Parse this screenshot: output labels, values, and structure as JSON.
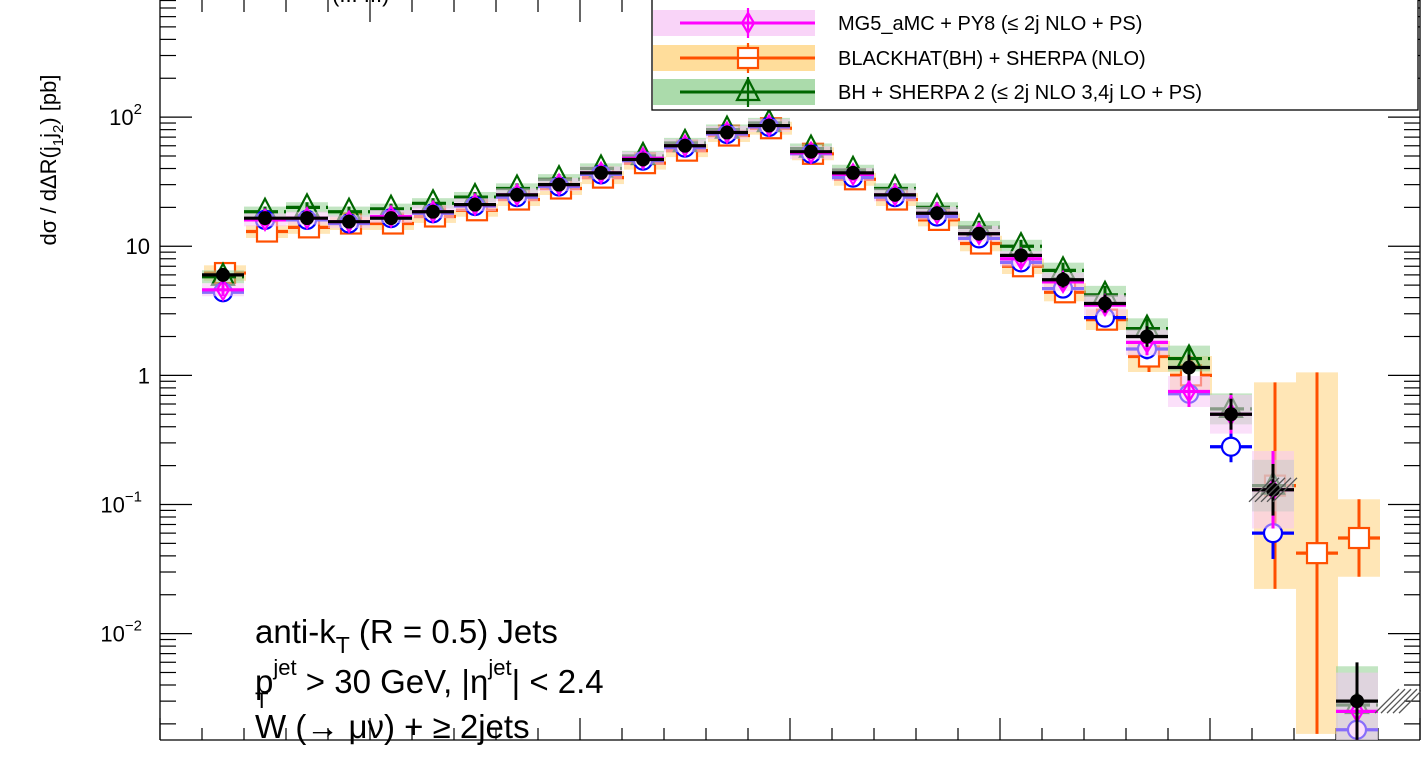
{
  "chart_data": {
    "type": "scatter",
    "ylabel": "dσ / dΔR(j",
    "ylabel_sub1": "1",
    "ylabel_mid": "j",
    "ylabel_sub2": "2",
    "ylabel_end": ")  [pb]",
    "y_scale": "log",
    "ylim": [
      0.0015,
      1000
    ],
    "xlim": [
      0,
      6
    ],
    "legend_position": "top-right",
    "y_tick_labels": [
      {
        "value": 0.01,
        "base": "10",
        "exp": "−2"
      },
      {
        "value": 0.1,
        "base": "10",
        "exp": "−1"
      },
      {
        "value": 1,
        "base": "1",
        "exp": ""
      },
      {
        "value": 10,
        "base": "10",
        "exp": ""
      },
      {
        "value": 100,
        "base": "10",
        "exp": "2"
      }
    ],
    "top_label_fragment": "(... ...)",
    "annotations": [
      {
        "text": "anti-k",
        "sub": "T",
        "rest": " (R = 0.5) Jets"
      },
      {
        "text": "p",
        "sub": "T",
        "sup": "jet",
        "rest": " > 30 GeV, |η",
        "sup2": "jet",
        "rest2": "| < 2.4"
      },
      {
        "text": "W (→ μν) + ≥ 2jets"
      }
    ],
    "x": [
      0.3,
      0.5,
      0.7,
      0.9,
      1.1,
      1.3,
      1.5,
      1.7,
      1.9,
      2.1,
      2.3,
      2.5,
      2.7,
      2.9,
      3.1,
      3.3,
      3.5,
      3.7,
      3.9,
      4.1,
      4.3,
      4.5,
      4.7,
      4.9,
      5.1,
      5.3,
      5.5,
      5.7,
      5.9
    ],
    "series": [
      {
        "name": "",
        "marker": "filled-circle",
        "color": "#000000",
        "values": [
          6.0,
          16.5,
          16.5,
          15.5,
          16.5,
          18.5,
          21.0,
          25.0,
          30.0,
          37.0,
          47.0,
          60.0,
          76.0,
          86.0,
          54.0,
          37.0,
          25.0,
          18.0,
          12.5,
          8.5,
          5.5,
          3.6,
          2.0,
          1.15,
          0.5,
          0.13,
          null,
          0.003,
          null
        ],
        "err": [
          0.05,
          0.04,
          0.04,
          0.04,
          0.04,
          0.04,
          0.04,
          0.04,
          0.04,
          0.04,
          0.04,
          0.04,
          0.04,
          0.04,
          0.04,
          0.04,
          0.04,
          0.04,
          0.05,
          0.05,
          0.06,
          0.07,
          0.08,
          0.1,
          0.12,
          0.2,
          null,
          0.3,
          null
        ]
      },
      {
        "name": "",
        "marker": "open-circle",
        "color": "#0000ff",
        "values": [
          4.4,
          16.0,
          16.0,
          15.0,
          16.5,
          18.0,
          20.5,
          24.0,
          29.0,
          36.0,
          46.0,
          58.0,
          74.0,
          84.0,
          52.0,
          34.0,
          24.0,
          17.0,
          11.5,
          7.5,
          4.7,
          2.8,
          1.6,
          0.72,
          0.28,
          0.06,
          null,
          0.0018,
          null
        ],
        "err": [
          0.05,
          0.04,
          0.04,
          0.04,
          0.04,
          0.04,
          0.04,
          0.04,
          0.04,
          0.04,
          0.04,
          0.04,
          0.04,
          0.04,
          0.04,
          0.04,
          0.04,
          0.04,
          0.05,
          0.05,
          0.06,
          0.07,
          0.08,
          0.1,
          0.12,
          0.2,
          null,
          0.3,
          null
        ]
      },
      {
        "name": "MG5_aMC + PY8 (≤ 2j NLO + PS)",
        "marker": "open-diamond",
        "color": "#ff00ff",
        "band": "#f7c6f5",
        "values": [
          4.6,
          16.0,
          16.5,
          15.5,
          17.0,
          18.5,
          21.0,
          25.0,
          30.0,
          37.0,
          48.0,
          60.0,
          76.0,
          86.0,
          53.0,
          36.0,
          25.0,
          18.0,
          12.5,
          8.0,
          5.3,
          3.5,
          1.8,
          0.75,
          0.5,
          0.13,
          null,
          0.0025,
          null
        ],
        "err": [
          0.05,
          0.05,
          0.05,
          0.05,
          0.05,
          0.05,
          0.05,
          0.05,
          0.05,
          0.05,
          0.05,
          0.05,
          0.05,
          0.05,
          0.05,
          0.05,
          0.05,
          0.05,
          0.06,
          0.06,
          0.07,
          0.08,
          0.1,
          0.12,
          0.15,
          0.3,
          null,
          0.3,
          null
        ]
      },
      {
        "name": "BLACKHAT(BH) + SHERPA (NLO)",
        "marker": "open-square",
        "color": "#ff4f00",
        "band": "#ffd27a",
        "values": [
          6.2,
          13.0,
          14.0,
          15.0,
          15.0,
          17.0,
          19.0,
          23.0,
          28.0,
          34.0,
          44.0,
          55.0,
          72.0,
          82.0,
          52.0,
          33.0,
          23.0,
          16.0,
          10.5,
          7.0,
          4.4,
          2.7,
          1.4,
          1.0,
          null,
          0.14,
          0.042,
          0.055,
          null
        ],
        "err": [
          0.06,
          0.05,
          0.05,
          0.05,
          0.05,
          0.05,
          0.05,
          0.05,
          0.05,
          0.05,
          0.05,
          0.05,
          0.05,
          0.05,
          0.05,
          0.05,
          0.05,
          0.05,
          0.06,
          0.06,
          0.07,
          0.08,
          0.12,
          0.15,
          null,
          0.8,
          1.4,
          0.3,
          null
        ]
      },
      {
        "name": "BH + SHERPA 2 (≤ 2j NLO 3,4j LO + PS)",
        "marker": "open-triangle",
        "color": "#006600",
        "band": "#8fcf8f",
        "values": [
          5.8,
          18.5,
          20.0,
          18.5,
          19.5,
          21.5,
          24.0,
          28.0,
          33.0,
          40.0,
          50.0,
          63.0,
          80.0,
          90.0,
          57.0,
          39.0,
          28.0,
          20.0,
          14.0,
          10.0,
          6.5,
          4.2,
          2.3,
          1.35,
          0.55,
          0.14,
          null,
          0.0028,
          null
        ],
        "err": [
          0.05,
          0.04,
          0.04,
          0.04,
          0.04,
          0.04,
          0.04,
          0.04,
          0.04,
          0.04,
          0.04,
          0.04,
          0.04,
          0.04,
          0.04,
          0.04,
          0.04,
          0.04,
          0.05,
          0.05,
          0.06,
          0.07,
          0.08,
          0.1,
          0.12,
          0.2,
          null,
          0.3,
          null
        ]
      }
    ],
    "colors": {
      "frame": "#000000",
      "background": "#ffffff"
    }
  }
}
